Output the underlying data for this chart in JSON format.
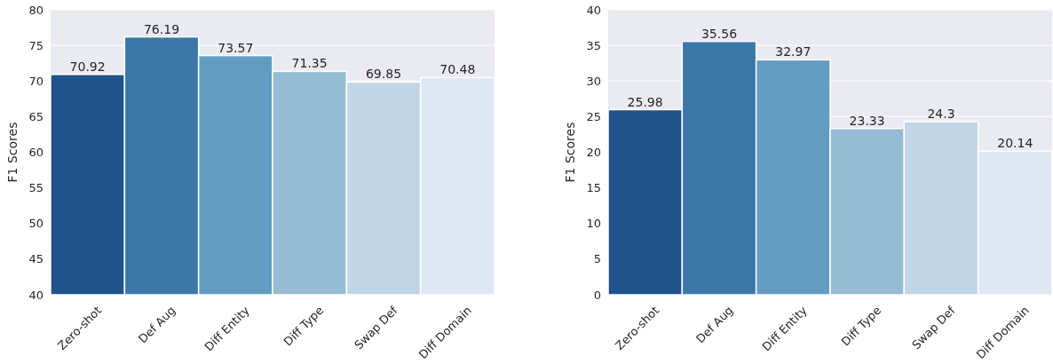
{
  "chart_data": [
    {
      "type": "bar",
      "categories": [
        "Zero-shot",
        "Def Aug",
        "Diff Entity",
        "Diff Type",
        "Swap Def",
        "Diff Domain"
      ],
      "values": [
        70.92,
        76.19,
        73.57,
        71.35,
        69.85,
        70.48
      ],
      "colors": [
        "#1f5389",
        "#3b78a8",
        "#629dc1",
        "#94bcd3",
        "#c0d6e6",
        "#dee8f3"
      ],
      "ylabel": "F1 Scores",
      "ylim": [
        40,
        80
      ],
      "yticks": [
        40,
        45,
        50,
        55,
        60,
        65,
        70,
        75,
        80
      ],
      "grid": "y",
      "data_labels": true
    },
    {
      "type": "bar",
      "categories": [
        "Zero-shot",
        "Def Aug",
        "Diff Entity",
        "Diff Type",
        "Swap Def",
        "Diff Domain"
      ],
      "values": [
        25.98,
        35.56,
        32.97,
        23.33,
        24.3,
        20.14
      ],
      "colors": [
        "#1f5389",
        "#3b78a8",
        "#629dc1",
        "#94bcd3",
        "#c0d6e6",
        "#dee8f3"
      ],
      "ylabel": "F1 Scores",
      "ylim": [
        0,
        40
      ],
      "yticks": [
        0,
        5,
        10,
        15,
        20,
        25,
        30,
        35,
        40
      ],
      "grid": "y",
      "data_labels": true
    }
  ]
}
